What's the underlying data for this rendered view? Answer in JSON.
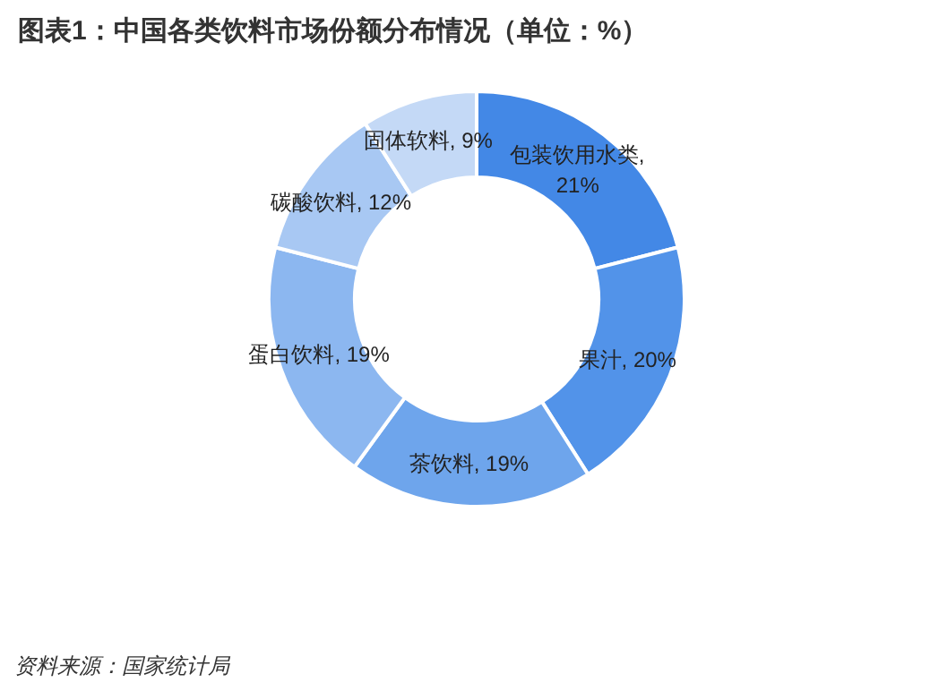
{
  "chart_data": {
    "type": "donut",
    "title": "图表1：中国各类饮料市场份额分布情况（单位：%）",
    "categories": [
      "包装饮用水类",
      "果汁",
      "茶饮料",
      "蛋白饮料",
      "碳酸饮料",
      "固体软料"
    ],
    "values": [
      21,
      20,
      19,
      19,
      12,
      9
    ],
    "colors": [
      "#4388e6",
      "#5293e9",
      "#6ea5ec",
      "#8cb7f0",
      "#a8c8f3",
      "#c4d9f6"
    ],
    "value_labels": [
      ", 21%",
      ", 20%",
      ", 19%",
      ", 19%",
      ", 12%",
      ", 9%"
    ],
    "annotations": [
      "资料来源：国家统计局"
    ]
  }
}
